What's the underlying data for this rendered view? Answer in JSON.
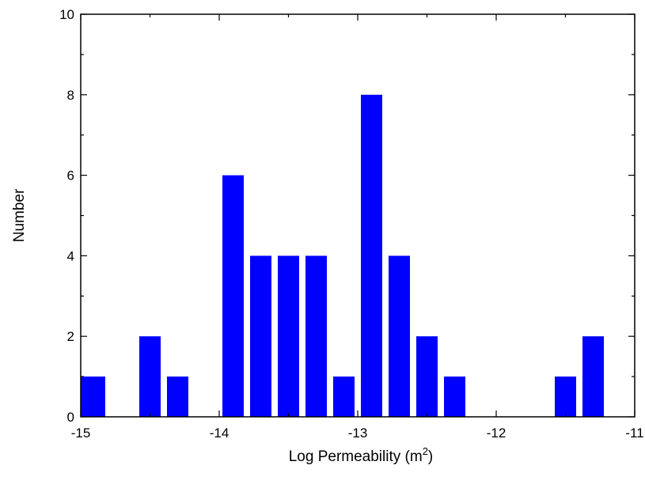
{
  "chart_data": {
    "type": "bar",
    "title": "",
    "xlabel": "Log Permeability (m",
    "xlabel_sup": "2",
    "xlabel_close": ")",
    "ylabel": "Number",
    "xlim": [
      -15,
      -11
    ],
    "ylim": [
      0,
      10
    ],
    "x_ticks": [
      "-15",
      "-14",
      "-13",
      "-12",
      "-11"
    ],
    "y_ticks": [
      "0",
      "2",
      "4",
      "6",
      "8",
      "10"
    ],
    "bin_width": 0.2,
    "bars": [
      {
        "x_start": -15.0,
        "value": 1
      },
      {
        "x_start": -14.6,
        "value": 2
      },
      {
        "x_start": -14.4,
        "value": 1
      },
      {
        "x_start": -14.0,
        "value": 6
      },
      {
        "x_start": -13.8,
        "value": 4
      },
      {
        "x_start": -13.6,
        "value": 4
      },
      {
        "x_start": -13.4,
        "value": 4
      },
      {
        "x_start": -13.2,
        "value": 1
      },
      {
        "x_start": -13.0,
        "value": 8
      },
      {
        "x_start": -12.8,
        "value": 4
      },
      {
        "x_start": -12.6,
        "value": 2
      },
      {
        "x_start": -12.4,
        "value": 1
      },
      {
        "x_start": -11.6,
        "value": 1
      },
      {
        "x_start": -11.4,
        "value": 2
      }
    ],
    "bar_color": "#0000ff",
    "grid": false
  }
}
